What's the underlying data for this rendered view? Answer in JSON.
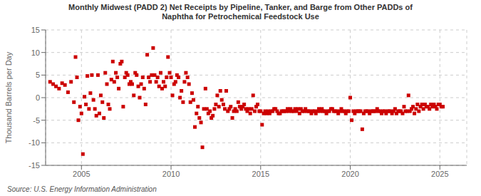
{
  "chart_data": {
    "type": "scatter",
    "title": "Monthly Midwest (PADD 2) Net Receipts by Pipeline, Tanker, and Barge from Other PADDs of\nNaphtha for Petrochemical Feedstock Use",
    "ylabel": "Thousand Barrels per Day",
    "annotation": "Source: U.S. Energy Information Administration",
    "color": "#cc0000",
    "marker": "square",
    "grid": true,
    "xlim": [
      2003.0,
      2026.5
    ],
    "ylim": [
      -15,
      15
    ],
    "xticks": [
      2005,
      2010,
      2015,
      2020,
      2025
    ],
    "yticks": [
      -15,
      -10,
      -5,
      0,
      5,
      10,
      15
    ],
    "x": [
      2003.25,
      2003.42,
      2003.58,
      2003.75,
      2003.92,
      2004.08,
      2004.25,
      2004.42,
      2004.58,
      2004.67,
      2004.75,
      2004.83,
      2004.92,
      2005.0,
      2005.08,
      2005.17,
      2005.25,
      2005.33,
      2005.42,
      2005.5,
      2005.58,
      2005.67,
      2005.75,
      2005.83,
      2005.92,
      2006.0,
      2006.08,
      2006.17,
      2006.25,
      2006.33,
      2006.42,
      2006.5,
      2006.58,
      2006.67,
      2006.75,
      2006.83,
      2006.92,
      2007.0,
      2007.08,
      2007.17,
      2007.25,
      2007.33,
      2007.42,
      2007.5,
      2007.58,
      2007.67,
      2007.75,
      2007.83,
      2007.92,
      2008.0,
      2008.08,
      2008.17,
      2008.25,
      2008.33,
      2008.42,
      2008.5,
      2008.58,
      2008.67,
      2008.75,
      2008.83,
      2008.92,
      2009.0,
      2009.08,
      2009.17,
      2009.25,
      2009.33,
      2009.42,
      2009.5,
      2009.58,
      2009.67,
      2009.75,
      2009.83,
      2009.92,
      2010.0,
      2010.08,
      2010.17,
      2010.25,
      2010.33,
      2010.42,
      2010.5,
      2010.58,
      2010.67,
      2010.75,
      2010.83,
      2010.92,
      2011.0,
      2011.08,
      2011.17,
      2011.25,
      2011.33,
      2011.42,
      2011.5,
      2011.58,
      2011.67,
      2011.75,
      2011.83,
      2011.92,
      2012.0,
      2012.08,
      2012.17,
      2012.25,
      2012.33,
      2012.42,
      2012.5,
      2012.58,
      2012.67,
      2012.75,
      2012.83,
      2012.92,
      2013.0,
      2013.08,
      2013.17,
      2013.25,
      2013.33,
      2013.42,
      2013.5,
      2013.58,
      2013.67,
      2013.75,
      2013.83,
      2013.92,
      2014.0,
      2014.08,
      2014.17,
      2014.25,
      2014.33,
      2014.42,
      2014.5,
      2014.58,
      2014.67,
      2014.75,
      2014.83,
      2014.92,
      2015.0,
      2015.08,
      2015.17,
      2015.25,
      2015.33,
      2015.42,
      2015.5,
      2015.58,
      2015.67,
      2015.75,
      2015.83,
      2015.92,
      2016.0,
      2016.08,
      2016.17,
      2016.25,
      2016.33,
      2016.42,
      2016.5,
      2016.58,
      2016.67,
      2016.75,
      2016.83,
      2016.92,
      2017.0,
      2017.08,
      2017.17,
      2017.25,
      2017.33,
      2017.42,
      2017.5,
      2017.58,
      2017.67,
      2017.75,
      2017.83,
      2017.92,
      2018.0,
      2018.08,
      2018.17,
      2018.25,
      2018.33,
      2018.42,
      2018.5,
      2018.58,
      2018.67,
      2018.75,
      2018.83,
      2018.92,
      2019.0,
      2019.08,
      2019.17,
      2019.25,
      2019.33,
      2019.42,
      2019.5,
      2019.58,
      2019.67,
      2019.75,
      2019.83,
      2019.92,
      2020.0,
      2020.08,
      2020.17,
      2020.25,
      2020.33,
      2020.42,
      2020.5,
      2020.58,
      2020.67,
      2020.75,
      2020.83,
      2020.92,
      2021.0,
      2021.08,
      2021.17,
      2021.25,
      2021.33,
      2021.42,
      2021.5,
      2021.58,
      2021.67,
      2021.75,
      2021.83,
      2021.92,
      2022.0,
      2022.08,
      2022.17,
      2022.25,
      2022.33,
      2022.42,
      2022.5,
      2022.58,
      2022.67,
      2022.75,
      2022.83,
      2022.92,
      2023.0,
      2023.08,
      2023.17,
      2023.25,
      2023.33,
      2023.42,
      2023.5,
      2023.58,
      2023.67,
      2023.75,
      2023.83,
      2023.92,
      2024.0,
      2024.08,
      2024.17,
      2024.25,
      2024.33,
      2024.42,
      2024.5,
      2024.58,
      2024.67,
      2024.75,
      2024.83,
      2024.92,
      2025.0,
      2025.08,
      2025.17
    ],
    "values": [
      3.5,
      3.0,
      2.5,
      2.0,
      3.2,
      2.8,
      1.2,
      3.5,
      -1.0,
      9.0,
      4.5,
      -5.0,
      -2.0,
      -3.5,
      -12.5,
      0.2,
      -1.5,
      4.8,
      -2.5,
      1.0,
      5.0,
      -0.5,
      -2.5,
      -4.0,
      5.0,
      -3.5,
      0.5,
      -1.0,
      -4.5,
      5.5,
      3.0,
      -1.5,
      -2.5,
      4.0,
      8.0,
      3.5,
      5.5,
      4.5,
      2.0,
      7.5,
      8.0,
      -2.0,
      4.5,
      5.5,
      5.0,
      3.0,
      3.5,
      3.0,
      0.5,
      5.5,
      5.0,
      2.5,
      0.0,
      3.0,
      4.5,
      2.0,
      -1.5,
      9.5,
      4.5,
      3.5,
      5.0,
      11.0,
      5.0,
      3.5,
      4.5,
      2.5,
      5.5,
      2.0,
      3.5,
      2.5,
      4.5,
      9.0,
      5.5,
      4.5,
      0.5,
      3.0,
      3.5,
      5.0,
      4.5,
      0.0,
      1.5,
      -1.0,
      3.5,
      5.5,
      4.5,
      3.0,
      -1.0,
      1.0,
      -0.5,
      -6.5,
      -3.5,
      -2.0,
      -4.5,
      -5.5,
      -11.0,
      -2.5,
      2.0,
      -2.5,
      -3.5,
      -3.0,
      -4.5,
      -4.0,
      -2.5,
      -1.5,
      0.5,
      -2.0,
      1.5,
      -0.5,
      -1.5,
      -2.5,
      1.5,
      -3.0,
      -2.5,
      -2.0,
      -4.5,
      -3.0,
      -2.5,
      -3.0,
      -1.0,
      -2.0,
      -2.5,
      -2.0,
      -1.5,
      -2.5,
      -3.0,
      -2.5,
      -3.5,
      -2.5,
      0.5,
      -3.0,
      -2.0,
      -1.5,
      -3.0,
      -3.0,
      -6.0,
      -3.5,
      -3.0,
      -3.5,
      -3.0,
      -3.5,
      -3.0,
      -3.0,
      -2.5,
      -2.5,
      -3.0,
      -3.5,
      -3.5,
      -3.0,
      -3.0,
      -3.0,
      -3.0,
      -2.5,
      -3.0,
      -2.5,
      -3.0,
      -3.0,
      -2.5,
      -3.0,
      -2.5,
      -3.5,
      -2.5,
      -3.0,
      -3.0,
      -2.5,
      -3.0,
      -3.0,
      -3.0,
      -3.5,
      -3.0,
      -3.0,
      -3.5,
      -3.0,
      -2.5,
      -3.0,
      -2.5,
      -3.0,
      -3.0,
      -3.5,
      -3.0,
      -3.0,
      -2.5,
      -2.5,
      -3.0,
      -3.0,
      -3.0,
      -3.5,
      -3.0,
      -2.5,
      -3.0,
      -3.0,
      -3.5,
      -3.0,
      -3.0,
      0.0,
      -5.0,
      -3.0,
      -3.5,
      -3.0,
      -3.0,
      -3.0,
      -3.0,
      -7.0,
      -3.5,
      -3.0,
      -3.0,
      -3.0,
      -3.5,
      -3.0,
      -3.0,
      -3.0,
      -3.0,
      -2.5,
      -3.0,
      -3.0,
      -3.5,
      -3.0,
      -3.0,
      -3.5,
      -3.0,
      -3.0,
      -3.0,
      -3.5,
      -3.0,
      -2.5,
      -3.5,
      -3.0,
      -3.0,
      -3.0,
      -3.5,
      -2.0,
      -3.0,
      -3.0,
      0.5,
      -3.0,
      -2.5,
      -2.0,
      -3.5,
      -2.5,
      -1.5,
      -3.0,
      -2.0,
      -1.5,
      -2.5,
      -1.5,
      -2.0,
      -2.0,
      -2.5,
      -1.5,
      -2.0,
      -1.5,
      -2.0,
      -2.5,
      -1.5,
      -1.5,
      -2.0,
      -2.0
    ]
  }
}
